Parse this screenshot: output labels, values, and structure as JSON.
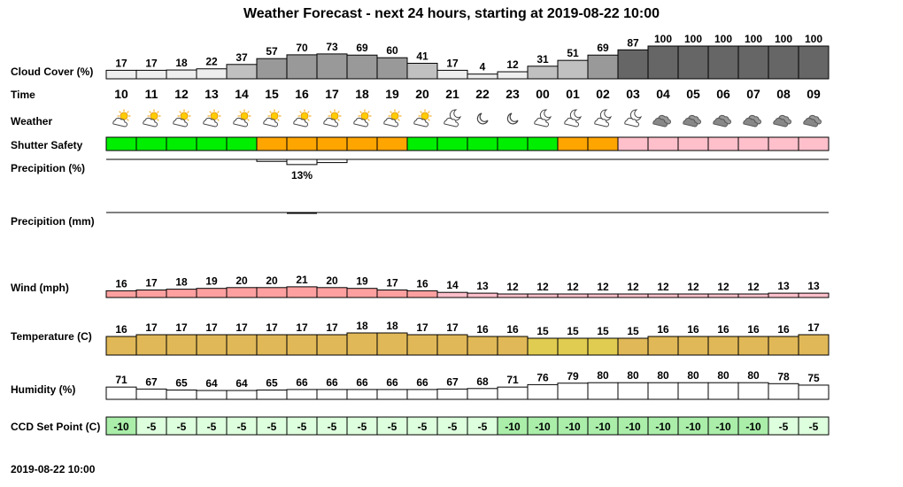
{
  "title": "Weather Forecast - next 24 hours, starting at 2019-08-22 10:00",
  "footer": "2019-08-22 10:00",
  "row_labels": {
    "cloud": "Cloud Cover (%)",
    "time": "Time",
    "weather": "Weather",
    "shutter": "Shutter Safety",
    "precip_pct": "Precipition (%)",
    "precip_mm": "Precipition (mm)",
    "wind": "Wind (mph)",
    "temp": "Temperature (C)",
    "humidity": "Humidity (%)",
    "ccd": "CCD Set Point (C)"
  },
  "precip_peak_label": "13%",
  "chart_data": {
    "type": "table",
    "hours": [
      "10",
      "11",
      "12",
      "13",
      "14",
      "15",
      "16",
      "17",
      "18",
      "19",
      "20",
      "21",
      "22",
      "23",
      "00",
      "01",
      "02",
      "03",
      "04",
      "05",
      "06",
      "07",
      "08",
      "09"
    ],
    "cloud_cover": [
      17,
      17,
      18,
      22,
      37,
      57,
      70,
      73,
      69,
      60,
      41,
      17,
      4,
      12,
      31,
      51,
      69,
      87,
      100,
      100,
      100,
      100,
      100,
      100
    ],
    "weather_icons": [
      "sun-cloud",
      "sun-cloud",
      "sun-cloud",
      "sun-cloud",
      "sun-cloud",
      "sun-cloud",
      "sun-cloud",
      "sun-cloud",
      "sun-cloud",
      "sun-cloud",
      "sun-cloud",
      "moon-cloud",
      "moon",
      "moon",
      "moon-cloud",
      "moon-cloud",
      "moon-cloud",
      "moon-cloud",
      "cloud",
      "cloud",
      "cloud",
      "cloud",
      "cloud",
      "cloud"
    ],
    "shutter_safety": [
      "safe",
      "safe",
      "safe",
      "safe",
      "safe",
      "caution",
      "caution",
      "caution",
      "caution",
      "caution",
      "safe",
      "safe",
      "safe",
      "safe",
      "safe",
      "caution",
      "caution",
      "unsafe",
      "unsafe",
      "unsafe",
      "unsafe",
      "unsafe",
      "unsafe",
      "unsafe"
    ],
    "precip_pct": [
      0,
      0,
      0,
      0,
      0,
      5,
      13,
      8,
      0,
      0,
      0,
      0,
      0,
      0,
      0,
      0,
      0,
      0,
      0,
      0,
      0,
      0,
      0,
      0
    ],
    "precip_mm": [
      0,
      0,
      0,
      0,
      0,
      0,
      0.1,
      0,
      0,
      0,
      0,
      0,
      0,
      0,
      0,
      0,
      0,
      0,
      0,
      0,
      0,
      0,
      0,
      0
    ],
    "wind_mph": [
      16,
      17,
      18,
      19,
      20,
      20,
      21,
      20,
      19,
      17,
      16,
      14,
      13,
      12,
      12,
      12,
      12,
      12,
      12,
      12,
      12,
      12,
      13,
      13
    ],
    "temperature_c": [
      16,
      17,
      17,
      17,
      17,
      17,
      17,
      17,
      18,
      18,
      17,
      17,
      16,
      16,
      15,
      15,
      15,
      15,
      16,
      16,
      16,
      16,
      16,
      17
    ],
    "humidity_pct": [
      71,
      67,
      65,
      64,
      64,
      65,
      66,
      66,
      66,
      66,
      66,
      67,
      68,
      71,
      76,
      79,
      80,
      80,
      80,
      80,
      80,
      80,
      78,
      75
    ],
    "ccd_set_point_c": [
      -10,
      -5,
      -5,
      -5,
      -5,
      -5,
      -5,
      -5,
      -5,
      -5,
      -5,
      -5,
      -5,
      -10,
      -10,
      -10,
      -10,
      -10,
      -10,
      -10,
      -10,
      -10,
      -5,
      -5
    ]
  },
  "colors": {
    "safe": "#00ee00",
    "caution": "#ffa500",
    "unsafe": "#ffc0cb",
    "wind_strong": "#ffa0a0",
    "wind_light": "#ffc0cb",
    "temp_warm": "#e0b858",
    "temp_cool": "#e0cc50",
    "ccd_cold": "#aaeeaa",
    "ccd_warm": "#ddffdd",
    "cloud_low": "#eeeeee",
    "cloud_mid": "#c0c0c0",
    "cloud_high": "#999999",
    "cloud_full": "#666666"
  }
}
